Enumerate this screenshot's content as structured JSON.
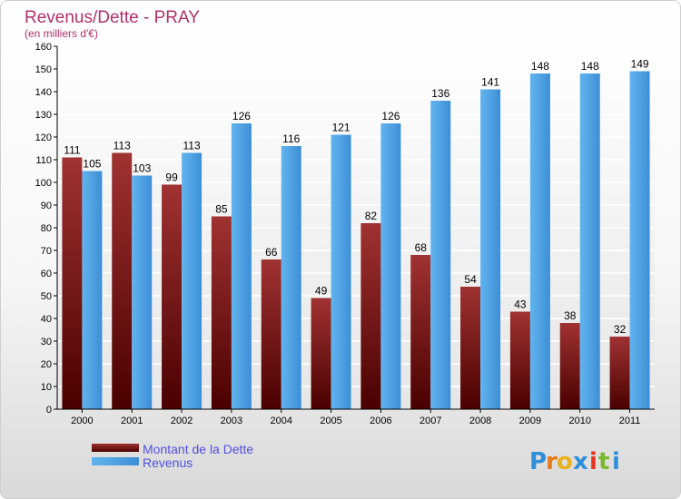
{
  "chart_data": {
    "type": "bar",
    "title": "Revenus/Dette - PRAY",
    "subtitle": "(en milliers d'€)",
    "categories": [
      "2000",
      "2001",
      "2002",
      "2003",
      "2004",
      "2005",
      "2006",
      "2007",
      "2008",
      "2009",
      "2010",
      "2011"
    ],
    "series": [
      {
        "name": "Montant de la Dette",
        "values": [
          111,
          113,
          99,
          85,
          66,
          49,
          82,
          68,
          54,
          43,
          38,
          32
        ],
        "color": "#7a1515"
      },
      {
        "name": "Revenus",
        "values": [
          105,
          103,
          113,
          126,
          116,
          121,
          126,
          136,
          141,
          148,
          148,
          149
        ],
        "color": "#4da3e6"
      }
    ],
    "ylim": [
      0,
      160
    ],
    "ytick_step": 10,
    "grid": true,
    "legend_position": "bottom-left",
    "colors": {
      "title": "#b0306a",
      "legend_text": "#5050e0",
      "axis": "#000000",
      "grid": "#ffffff"
    }
  },
  "brand": {
    "name": "Proxiti"
  }
}
